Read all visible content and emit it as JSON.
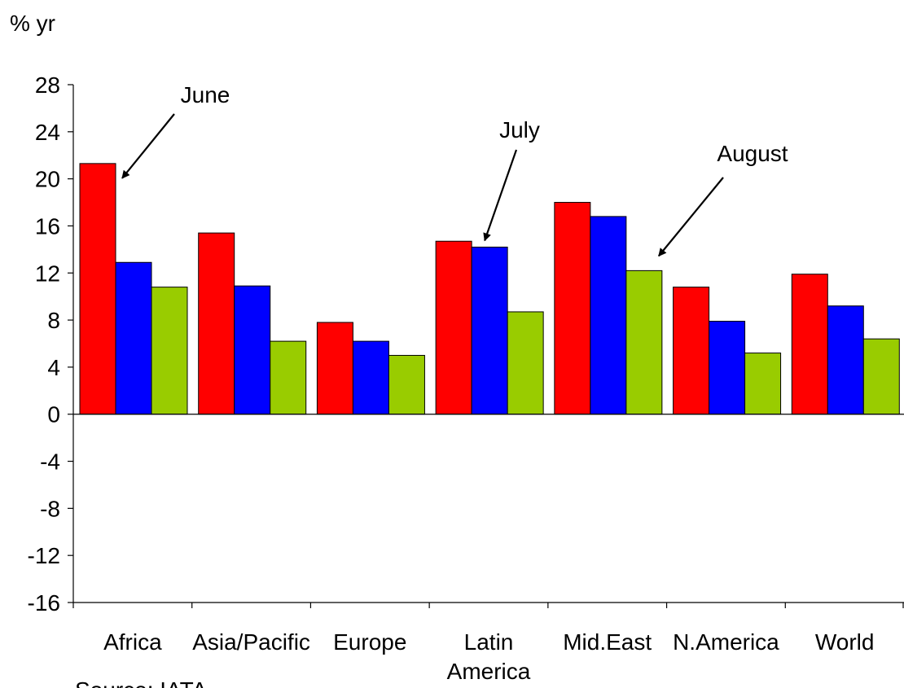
{
  "chart_data": {
    "type": "bar",
    "y_unit_label": "% yr",
    "source_note": "Source: IATA",
    "categories": [
      [
        "Africa"
      ],
      [
        "Asia/Pacific"
      ],
      [
        "Europe"
      ],
      [
        "Latin",
        "America"
      ],
      [
        "Mid.East"
      ],
      [
        "N.America"
      ],
      [
        "World"
      ]
    ],
    "series": [
      {
        "name": "June",
        "color": "#ff0000",
        "values": [
          21.3,
          15.4,
          7.8,
          14.7,
          18.0,
          10.8,
          11.9
        ]
      },
      {
        "name": "July",
        "color": "#0000ff",
        "values": [
          12.9,
          10.9,
          6.2,
          14.2,
          16.8,
          7.9,
          9.2
        ]
      },
      {
        "name": "August",
        "color": "#99cc00",
        "values": [
          10.8,
          6.2,
          5.0,
          8.7,
          12.2,
          5.2,
          6.4
        ]
      }
    ],
    "ylim": [
      -16,
      28
    ],
    "yticks": [
      28,
      24,
      20,
      16,
      12,
      8,
      4,
      0,
      -4,
      -8,
      -12,
      -16
    ],
    "grid": false,
    "legend": "none",
    "annotations": [
      {
        "text": "June",
        "series": 0,
        "category": 0
      },
      {
        "text": "July",
        "series": 1,
        "category": 3
      },
      {
        "text": "August",
        "series": 2,
        "category": 4
      }
    ]
  }
}
